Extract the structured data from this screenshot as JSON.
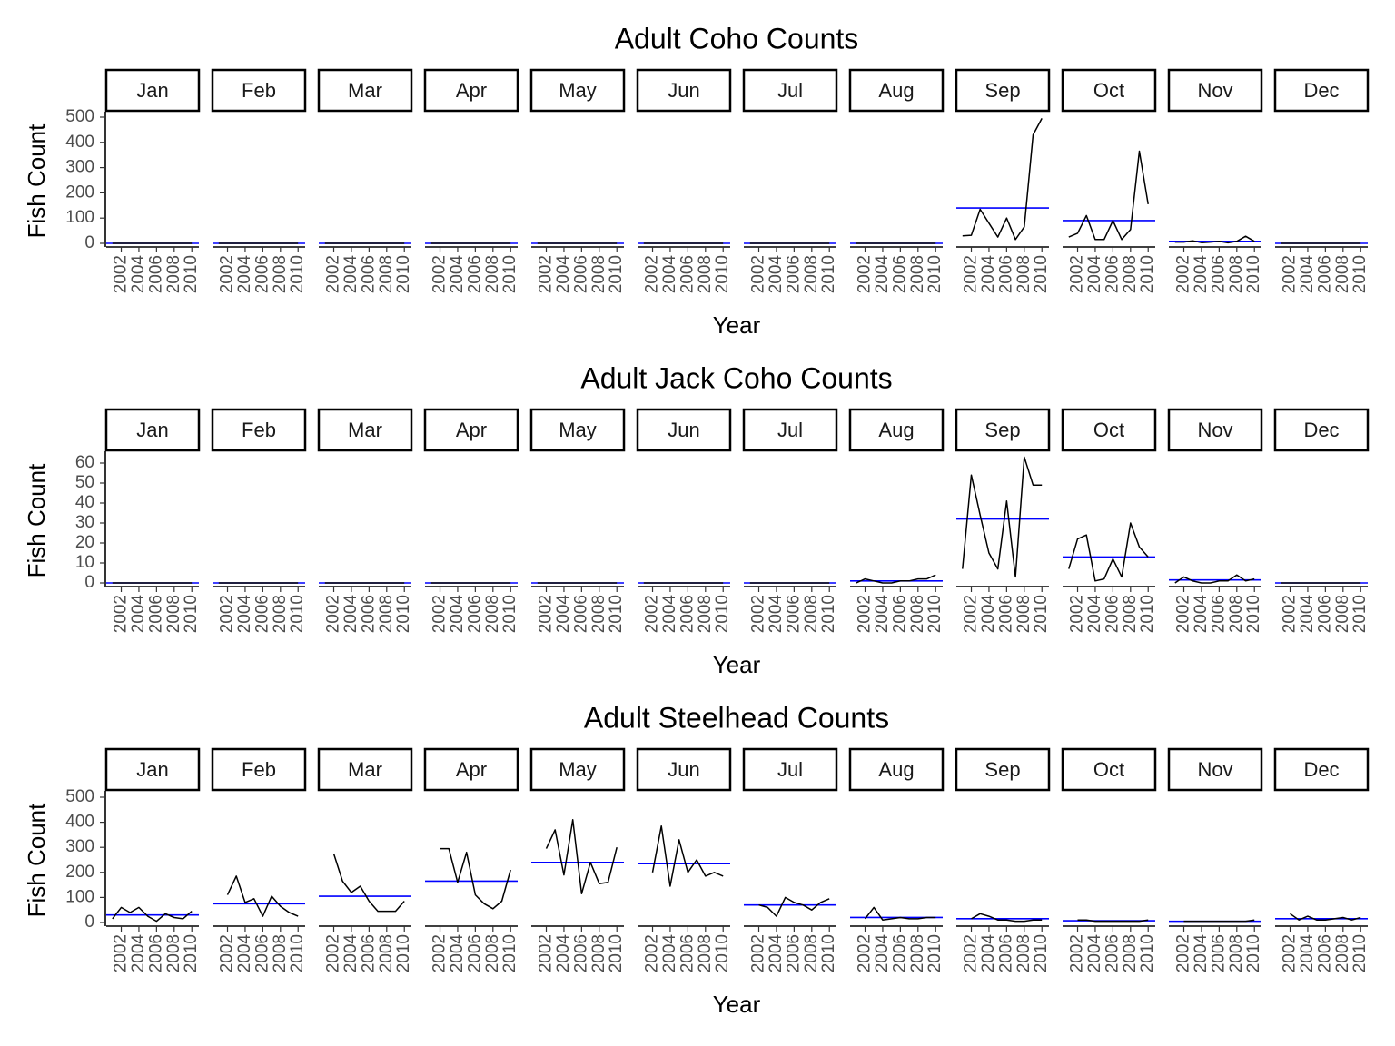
{
  "chart_data": [
    {
      "type": "line",
      "title": "Adult Coho Counts",
      "xlabel": "Year",
      "ylabel": "Fish Count",
      "ylim": [
        -15,
        510
      ],
      "yticks": [
        0,
        100,
        200,
        300,
        400,
        500
      ],
      "xlim": [
        2000.3,
        2010.8
      ],
      "xticks": [
        2002,
        2004,
        2006,
        2008,
        2010
      ],
      "panels": [
        "Jan",
        "Feb",
        "Mar",
        "Apr",
        "May",
        "Jun",
        "Jul",
        "Aug",
        "Sep",
        "Oct",
        "Nov",
        "Dec"
      ],
      "colors": {
        "series": "#000000",
        "mean": "#0000ff"
      },
      "x": [
        2001,
        2002,
        2003,
        2004,
        2005,
        2006,
        2007,
        2008,
        2009,
        2010
      ],
      "series": [
        {
          "values": [
            0,
            0,
            0,
            0,
            0,
            0,
            0,
            0,
            0,
            0
          ],
          "mean": 0
        },
        {
          "values": [
            0,
            0,
            0,
            0,
            0,
            0,
            0,
            0,
            0,
            0
          ],
          "mean": 0
        },
        {
          "values": [
            0,
            0,
            0,
            0,
            0,
            0,
            0,
            0,
            0,
            0
          ],
          "mean": 0
        },
        {
          "values": [
            0,
            0,
            0,
            0,
            0,
            0,
            0,
            0,
            0,
            0
          ],
          "mean": 0
        },
        {
          "values": [
            0,
            0,
            0,
            0,
            0,
            0,
            0,
            0,
            0,
            0
          ],
          "mean": 0
        },
        {
          "values": [
            0,
            0,
            0,
            0,
            0,
            0,
            0,
            0,
            0,
            0
          ],
          "mean": 0
        },
        {
          "values": [
            0,
            0,
            0,
            0,
            0,
            0,
            0,
            0,
            0,
            0
          ],
          "mean": 0
        },
        {
          "values": [
            0,
            0,
            0,
            0,
            0,
            0,
            0,
            0,
            0,
            0
          ],
          "mean": 0
        },
        {
          "values": [
            30,
            32,
            135,
            80,
            25,
            100,
            15,
            65,
            430,
            495
          ],
          "mean": 140
        },
        {
          "values": [
            25,
            40,
            110,
            15,
            15,
            90,
            15,
            55,
            365,
            155
          ],
          "mean": 90
        },
        {
          "values": [
            5,
            5,
            10,
            3,
            5,
            8,
            2,
            8,
            28,
            8
          ],
          "mean": 8
        },
        {
          "values": [
            0,
            0,
            0,
            0,
            0,
            0,
            0,
            0,
            0,
            0
          ],
          "mean": 0
        }
      ]
    },
    {
      "type": "line",
      "title": "Adult Jack Coho Counts",
      "xlabel": "Year",
      "ylabel": "Fish Count",
      "ylim": [
        -1.5,
        64
      ],
      "yticks": [
        0,
        10,
        20,
        30,
        40,
        50,
        60
      ],
      "xlim": [
        2000.3,
        2010.8
      ],
      "xticks": [
        2002,
        2004,
        2006,
        2008,
        2010
      ],
      "panels": [
        "Jan",
        "Feb",
        "Mar",
        "Apr",
        "May",
        "Jun",
        "Jul",
        "Aug",
        "Sep",
        "Oct",
        "Nov",
        "Dec"
      ],
      "colors": {
        "series": "#000000",
        "mean": "#0000ff"
      },
      "x": [
        2001,
        2002,
        2003,
        2004,
        2005,
        2006,
        2007,
        2008,
        2009,
        2010
      ],
      "series": [
        {
          "values": [
            0,
            0,
            0,
            0,
            0,
            0,
            0,
            0,
            0,
            0
          ],
          "mean": 0
        },
        {
          "values": [
            0,
            0,
            0,
            0,
            0,
            0,
            0,
            0,
            0,
            0
          ],
          "mean": 0
        },
        {
          "values": [
            0,
            0,
            0,
            0,
            0,
            0,
            0,
            0,
            0,
            0
          ],
          "mean": 0
        },
        {
          "values": [
            0,
            0,
            0,
            0,
            0,
            0,
            0,
            0,
            0,
            0
          ],
          "mean": 0
        },
        {
          "values": [
            0,
            0,
            0,
            0,
            0,
            0,
            0,
            0,
            0,
            0
          ],
          "mean": 0
        },
        {
          "values": [
            0,
            0,
            0,
            0,
            0,
            0,
            0,
            0,
            0,
            0
          ],
          "mean": 0
        },
        {
          "values": [
            0,
            0,
            0,
            0,
            0,
            0,
            0,
            0,
            0,
            0
          ],
          "mean": 0
        },
        {
          "values": [
            0,
            2,
            1,
            0,
            0,
            1,
            1,
            2,
            2,
            4
          ],
          "mean": 1
        },
        {
          "values": [
            7,
            54,
            34,
            15,
            7,
            41,
            3,
            63,
            49,
            49
          ],
          "mean": 32
        },
        {
          "values": [
            7,
            22,
            24,
            1,
            2,
            12,
            3,
            30,
            18,
            13
          ],
          "mean": 13
        },
        {
          "values": [
            0,
            3,
            1,
            0,
            0,
            1,
            1,
            4,
            1,
            2
          ],
          "mean": 1.5
        },
        {
          "values": [
            0,
            0,
            0,
            0,
            0,
            0,
            0,
            0,
            0,
            0
          ],
          "mean": 0
        }
      ]
    },
    {
      "type": "line",
      "title": "Adult Steelhead Counts",
      "xlabel": "Year",
      "ylabel": "Fish Count",
      "ylim": [
        -15,
        510
      ],
      "yticks": [
        0,
        100,
        200,
        300,
        400,
        500
      ],
      "xlim": [
        2000.3,
        2010.8
      ],
      "xticks": [
        2002,
        2004,
        2006,
        2008,
        2010
      ],
      "panels": [
        "Jan",
        "Feb",
        "Mar",
        "Apr",
        "May",
        "Jun",
        "Jul",
        "Aug",
        "Sep",
        "Oct",
        "Nov",
        "Dec"
      ],
      "colors": {
        "series": "#000000",
        "mean": "#0000ff"
      },
      "x": [
        2001,
        2002,
        2003,
        2004,
        2005,
        2006,
        2007,
        2008,
        2009,
        2010
      ],
      "series": [
        {
          "values": [
            15,
            60,
            40,
            60,
            25,
            5,
            35,
            20,
            15,
            45
          ],
          "mean": 30
        },
        {
          "values": [
            null,
            110,
            185,
            80,
            95,
            25,
            105,
            65,
            40,
            25
          ],
          "mean": 75
        },
        {
          "values": [
            null,
            275,
            165,
            120,
            145,
            85,
            45,
            45,
            45,
            85
          ],
          "mean": 105
        },
        {
          "values": [
            null,
            295,
            295,
            160,
            280,
            110,
            75,
            55,
            85,
            210
          ],
          "mean": 165
        },
        {
          "values": [
            null,
            295,
            370,
            190,
            410,
            115,
            240,
            155,
            160,
            300
          ],
          "mean": 240
        },
        {
          "values": [
            null,
            200,
            385,
            145,
            330,
            200,
            250,
            185,
            200,
            185
          ],
          "mean": 235
        },
        {
          "values": [
            null,
            70,
            60,
            25,
            100,
            80,
            70,
            50,
            80,
            95
          ],
          "mean": 70
        },
        {
          "values": [
            null,
            15,
            60,
            10,
            15,
            20,
            15,
            15,
            20,
            20
          ],
          "mean": 20
        },
        {
          "values": [
            null,
            15,
            35,
            25,
            10,
            10,
            5,
            5,
            10,
            10
          ],
          "mean": 15
        },
        {
          "values": [
            null,
            10,
            10,
            5,
            5,
            5,
            5,
            5,
            5,
            10
          ],
          "mean": 7
        },
        {
          "values": [
            null,
            5,
            5,
            5,
            5,
            5,
            5,
            5,
            5,
            10
          ],
          "mean": 5
        },
        {
          "values": [
            null,
            35,
            10,
            25,
            10,
            10,
            15,
            20,
            10,
            20
          ],
          "mean": 15
        }
      ]
    }
  ]
}
